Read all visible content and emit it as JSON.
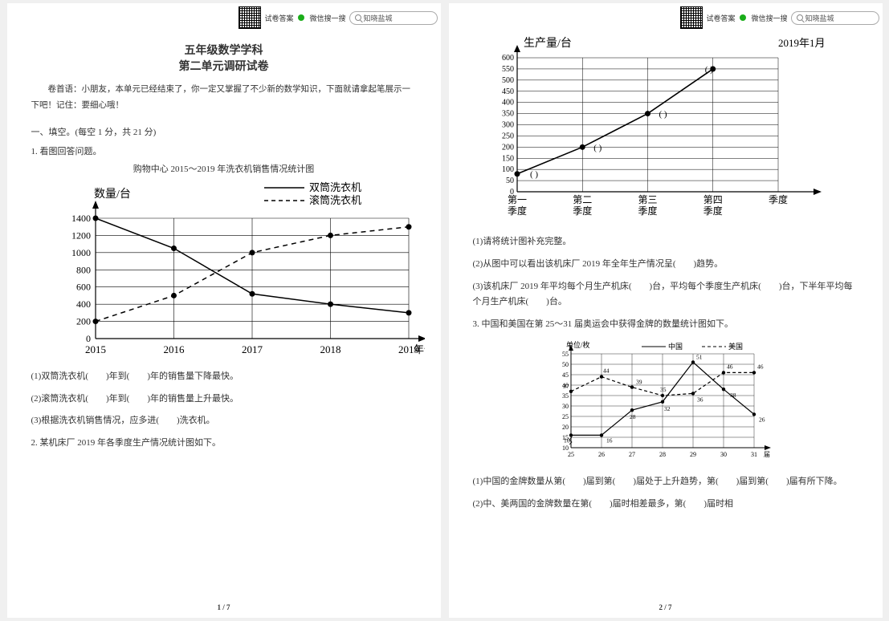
{
  "topbar": {
    "label1": "试卷答案",
    "label2": "微信搜一搜",
    "search_placeholder": "知晓盐城"
  },
  "page1": {
    "title": "五年级数学学科",
    "subtitle": "第二单元调研试卷",
    "intro": "卷首语：小朋友，本单元已经结束了，你一定又掌握了不少新的数学知识，下面就请拿起笔展示一下吧！记住：要细心哦！",
    "section1": "一、填空。(每空 1 分，共 21 分)",
    "q1": "1. 看图回答问题。",
    "chart1": {
      "title": "购物中心 2015～2019 年洗衣机销售情况统计图",
      "ylabel": "数量/台",
      "xlabel": "年份",
      "legend_solid": "双筒洗衣机",
      "legend_dash": "滚筒洗衣机",
      "years": [
        "2015",
        "2016",
        "2017",
        "2018",
        "2019"
      ],
      "yticks": [
        0,
        200,
        400,
        600,
        800,
        1000,
        1200,
        1400
      ],
      "series_solid": [
        1400,
        1050,
        520,
        400,
        300
      ],
      "series_dash": [
        200,
        500,
        1000,
        1200,
        1300
      ],
      "line_color": "#000000",
      "grid_color": "#000000",
      "bg": "#ffffff",
      "axis_fontsize": 12
    },
    "q1_1": "(1)双筒洗衣机(　　)年到(　　)年的销售量下降最快。",
    "q1_2": "(2)滚筒洗衣机(　　)年到(　　)年的销售量上升最快。",
    "q1_3": "(3)根据洗衣机销售情况，应多进(　　)洗衣机。",
    "q2": "2. 某机床厂 2019 年各季度生产情况统计图如下。",
    "pagenum": "1 / 7"
  },
  "page2": {
    "chart2": {
      "ylabel": "生产量/台",
      "date": "2019年1月",
      "xcats": [
        "第一",
        "第二",
        "第三",
        "第四",
        "季度"
      ],
      "xcats2": [
        "季度",
        "季度",
        "季度",
        "季度",
        ""
      ],
      "yticks": [
        0,
        50,
        100,
        150,
        200,
        250,
        300,
        350,
        400,
        450,
        500,
        550,
        600
      ],
      "values": [
        80,
        200,
        350,
        550
      ],
      "line_color": "#000000",
      "grid_color": "#000000",
      "bg": "#ffffff",
      "axis_fontsize": 11
    },
    "q2_1": "(1)请将统计图补充完整。",
    "q2_2": "(2)从图中可以看出该机床厂 2019 年全年生产情况呈(　　)趋势。",
    "q2_3": "(3)该机床厂 2019 年平均每个月生产机床(　　)台，平均每个季度生产机床(　　)台，下半年平均每个月生产机床(　　)台。",
    "q3": "3. 中国和美国在第 25～31 届奥运会中获得金牌的数量统计图如下。",
    "chart3": {
      "ylabel": "单位/枚",
      "legend_solid": "中国",
      "legend_dash": "美国",
      "xcats": [
        "25",
        "26",
        "27",
        "28",
        "29",
        "30",
        "31"
      ],
      "xlabel": "届",
      "yticks": [
        10,
        15,
        20,
        25,
        30,
        35,
        40,
        45,
        50,
        55
      ],
      "china": [
        16,
        16,
        28,
        32,
        51,
        38,
        26
      ],
      "usa": [
        37,
        44,
        39,
        35,
        36,
        46,
        46
      ],
      "labels_china": [
        "16",
        "16",
        "28",
        "32",
        "51",
        "38",
        "26"
      ],
      "labels_usa": [
        "37",
        "44",
        "39",
        "35",
        "36",
        "46",
        "46"
      ],
      "line_color": "#000000",
      "grid_color": "#000000"
    },
    "q3_1": "(1)中国的金牌数量从第(　　)届到第(　　)届处于上升趋势，第(　　)届到第(　　)届有所下降。",
    "q3_2": "(2)中、美两国的金牌数量在第(　　)届时相差最多，第(　　)届时相",
    "pagenum": "2 / 7"
  }
}
